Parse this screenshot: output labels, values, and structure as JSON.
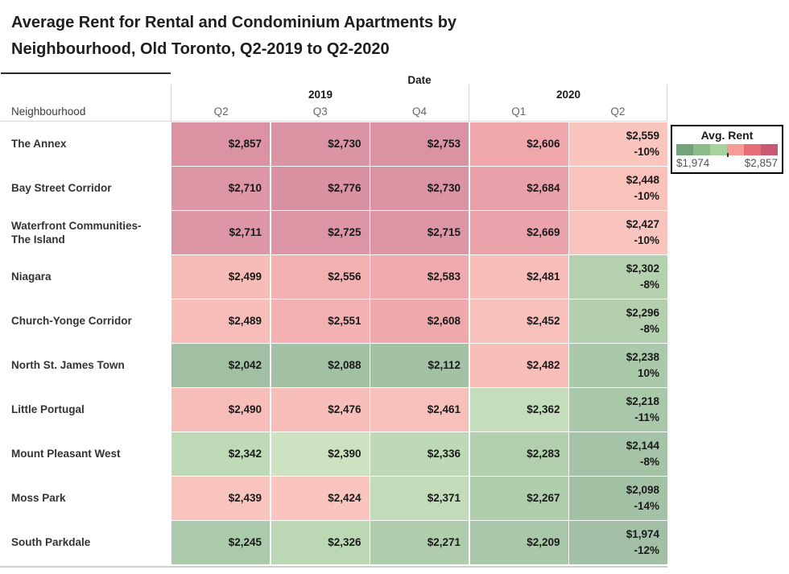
{
  "title": {
    "line1": "Average Rent for Rental and Condominium Apartments by",
    "line2": "Neighbourhood, Old Toronto, Q2-2019 to Q2-2020"
  },
  "header": {
    "date_label": "Date",
    "neighbourhood_label": "Neighbourhood",
    "year_2019": "2019",
    "year_2020": "2020",
    "quarters": [
      "Q2",
      "Q3",
      "Q4",
      "Q1",
      "Q2"
    ]
  },
  "legend": {
    "title": "Avg. Rent",
    "min_label": "$1,974",
    "max_label": "$2,857",
    "segments": [
      "#74a27b",
      "#8cbc8a",
      "#a8d29c",
      "#f59d94",
      "#e56e76",
      "#c75a72"
    ]
  },
  "rows": [
    {
      "name": "The Annex",
      "cells": [
        {
          "value": "$2,857",
          "color": "#db93a3"
        },
        {
          "value": "$2,730",
          "color": "#db94a4"
        },
        {
          "value": "$2,753",
          "color": "#db93a3"
        },
        {
          "value": "$2,606",
          "color": "#efa7ab"
        },
        {
          "value": "$2,559",
          "pct": "-10%",
          "color": "#f9c5bd"
        }
      ]
    },
    {
      "name": "Bay Street Corridor",
      "cells": [
        {
          "value": "$2,710",
          "color": "#dc96a5"
        },
        {
          "value": "$2,776",
          "color": "#da91a2"
        },
        {
          "value": "$2,730",
          "color": "#db94a4"
        },
        {
          "value": "$2,684",
          "color": "#e9a1a9"
        },
        {
          "value": "$2,448",
          "pct": "-10%",
          "color": "#f9c3bc"
        }
      ]
    },
    {
      "name": "Waterfront Communities-The Island",
      "cells": [
        {
          "value": "$2,711",
          "color": "#dc96a5"
        },
        {
          "value": "$2,725",
          "color": "#db95a4"
        },
        {
          "value": "$2,715",
          "color": "#db95a5"
        },
        {
          "value": "$2,669",
          "color": "#eaa3aa"
        },
        {
          "value": "$2,427",
          "pct": "-10%",
          "color": "#f9c4bd"
        }
      ]
    },
    {
      "name": "Niagara",
      "cells": [
        {
          "value": "$2,499",
          "color": "#f7bcb8"
        },
        {
          "value": "$2,556",
          "color": "#f3b1b1"
        },
        {
          "value": "$2,583",
          "color": "#eeaaae"
        },
        {
          "value": "$2,481",
          "color": "#f8beba"
        },
        {
          "value": "$2,302",
          "pct": "-8%",
          "color": "#b4d0ae"
        }
      ]
    },
    {
      "name": "Church-Yonge Corridor",
      "cells": [
        {
          "value": "$2,489",
          "color": "#f7bdb9"
        },
        {
          "value": "$2,551",
          "color": "#f3b2b1"
        },
        {
          "value": "$2,608",
          "color": "#efa8ab"
        },
        {
          "value": "$2,452",
          "color": "#f8c0bb"
        },
        {
          "value": "$2,296",
          "pct": "-8%",
          "color": "#b3cfad"
        }
      ]
    },
    {
      "name": "North St. James Town",
      "cells": [
        {
          "value": "$2,042",
          "color": "#a1bfa3"
        },
        {
          "value": "$2,088",
          "color": "#a2c0a4"
        },
        {
          "value": "$2,112",
          "color": "#a3c1a4"
        },
        {
          "value": "$2,482",
          "color": "#f8beba"
        },
        {
          "value": "$2,238",
          "pct": "10%",
          "color": "#aac8aa"
        }
      ]
    },
    {
      "name": "Little Portugal",
      "cells": [
        {
          "value": "$2,490",
          "color": "#f7bdb9"
        },
        {
          "value": "$2,476",
          "color": "#f8bfba"
        },
        {
          "value": "$2,461",
          "color": "#f8c0bb"
        },
        {
          "value": "$2,362",
          "color": "#c4ddbb"
        },
        {
          "value": "$2,218",
          "pct": "-11%",
          "color": "#a9c8a9"
        }
      ]
    },
    {
      "name": "Mount Pleasant West",
      "cells": [
        {
          "value": "$2,342",
          "color": "#bfdab7"
        },
        {
          "value": "$2,390",
          "color": "#cce2c0"
        },
        {
          "value": "$2,336",
          "color": "#bed9b6"
        },
        {
          "value": "$2,283",
          "color": "#b2cfad"
        },
        {
          "value": "$2,144",
          "pct": "-8%",
          "color": "#a5c3a6"
        }
      ]
    },
    {
      "name": "Moss Park",
      "cells": [
        {
          "value": "$2,439",
          "color": "#f9c4bd"
        },
        {
          "value": "$2,424",
          "color": "#f9c5be"
        },
        {
          "value": "$2,371",
          "color": "#c2dcba"
        },
        {
          "value": "$2,267",
          "color": "#aeceac"
        },
        {
          "value": "$2,098",
          "pct": "-14%",
          "color": "#a3c1a4"
        }
      ]
    },
    {
      "name": "South Parkdale",
      "cells": [
        {
          "value": "$2,245",
          "color": "#abc9ab"
        },
        {
          "value": "$2,326",
          "color": "#bcd7b4"
        },
        {
          "value": "$2,271",
          "color": "#afcdac"
        },
        {
          "value": "$2,209",
          "color": "#a9c7a9"
        },
        {
          "value": "$1,974",
          "pct": "-12%",
          "color": "#a3c0a6"
        }
      ]
    }
  ],
  "chart_data": {
    "type": "heatmap",
    "title": "Average Rent for Rental and Condominium Apartments by Neighbourhood, Old Toronto, Q2-2019 to Q2-2020",
    "xlabel": "Date",
    "ylabel": "Neighbourhood",
    "columns": [
      "2019 Q2",
      "2019 Q3",
      "2019 Q4",
      "2020 Q1",
      "2020 Q2"
    ],
    "rows": [
      "The Annex",
      "Bay Street Corridor",
      "Waterfront Communities-The Island",
      "Niagara",
      "Church-Yonge Corridor",
      "North St. James Town",
      "Little Portugal",
      "Mount Pleasant West",
      "Moss Park",
      "South Parkdale"
    ],
    "values": [
      [
        2857,
        2730,
        2753,
        2606,
        2559
      ],
      [
        2710,
        2776,
        2730,
        2684,
        2448
      ],
      [
        2711,
        2725,
        2715,
        2669,
        2427
      ],
      [
        2499,
        2556,
        2583,
        2481,
        2302
      ],
      [
        2489,
        2551,
        2608,
        2452,
        2296
      ],
      [
        2042,
        2088,
        2112,
        2482,
        2238
      ],
      [
        2490,
        2476,
        2461,
        2362,
        2218
      ],
      [
        2342,
        2390,
        2336,
        2283,
        2144
      ],
      [
        2439,
        2424,
        2371,
        2267,
        2098
      ],
      [
        2245,
        2326,
        2271,
        2209,
        1974
      ]
    ],
    "q2_2020_pct_change": [
      "-10%",
      "-10%",
      "-10%",
      "-8%",
      "-8%",
      "10%",
      "-11%",
      "-8%",
      "-14%",
      "-12%"
    ],
    "color_scale": {
      "label": "Avg. Rent",
      "min": 1974,
      "max": 2857,
      "low_color": "#74a27b",
      "high_color": "#c75a72"
    },
    "legend_position": "top-right",
    "grid": false
  }
}
